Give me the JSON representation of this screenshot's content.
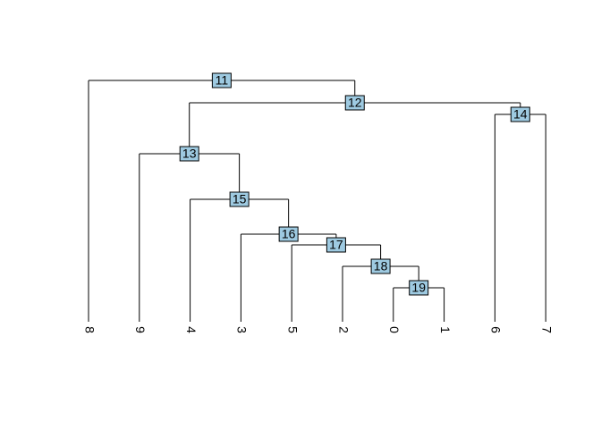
{
  "leaves": [
    "8",
    "9",
    "4",
    "3",
    "5",
    "2",
    "0",
    "1",
    "6",
    "7"
  ],
  "nodes": [
    {
      "label": "11"
    },
    {
      "label": "12"
    },
    {
      "label": "13"
    },
    {
      "label": "14"
    },
    {
      "label": "15"
    },
    {
      "label": "16"
    },
    {
      "label": "17"
    },
    {
      "label": "18"
    },
    {
      "label": "19"
    }
  ]
}
